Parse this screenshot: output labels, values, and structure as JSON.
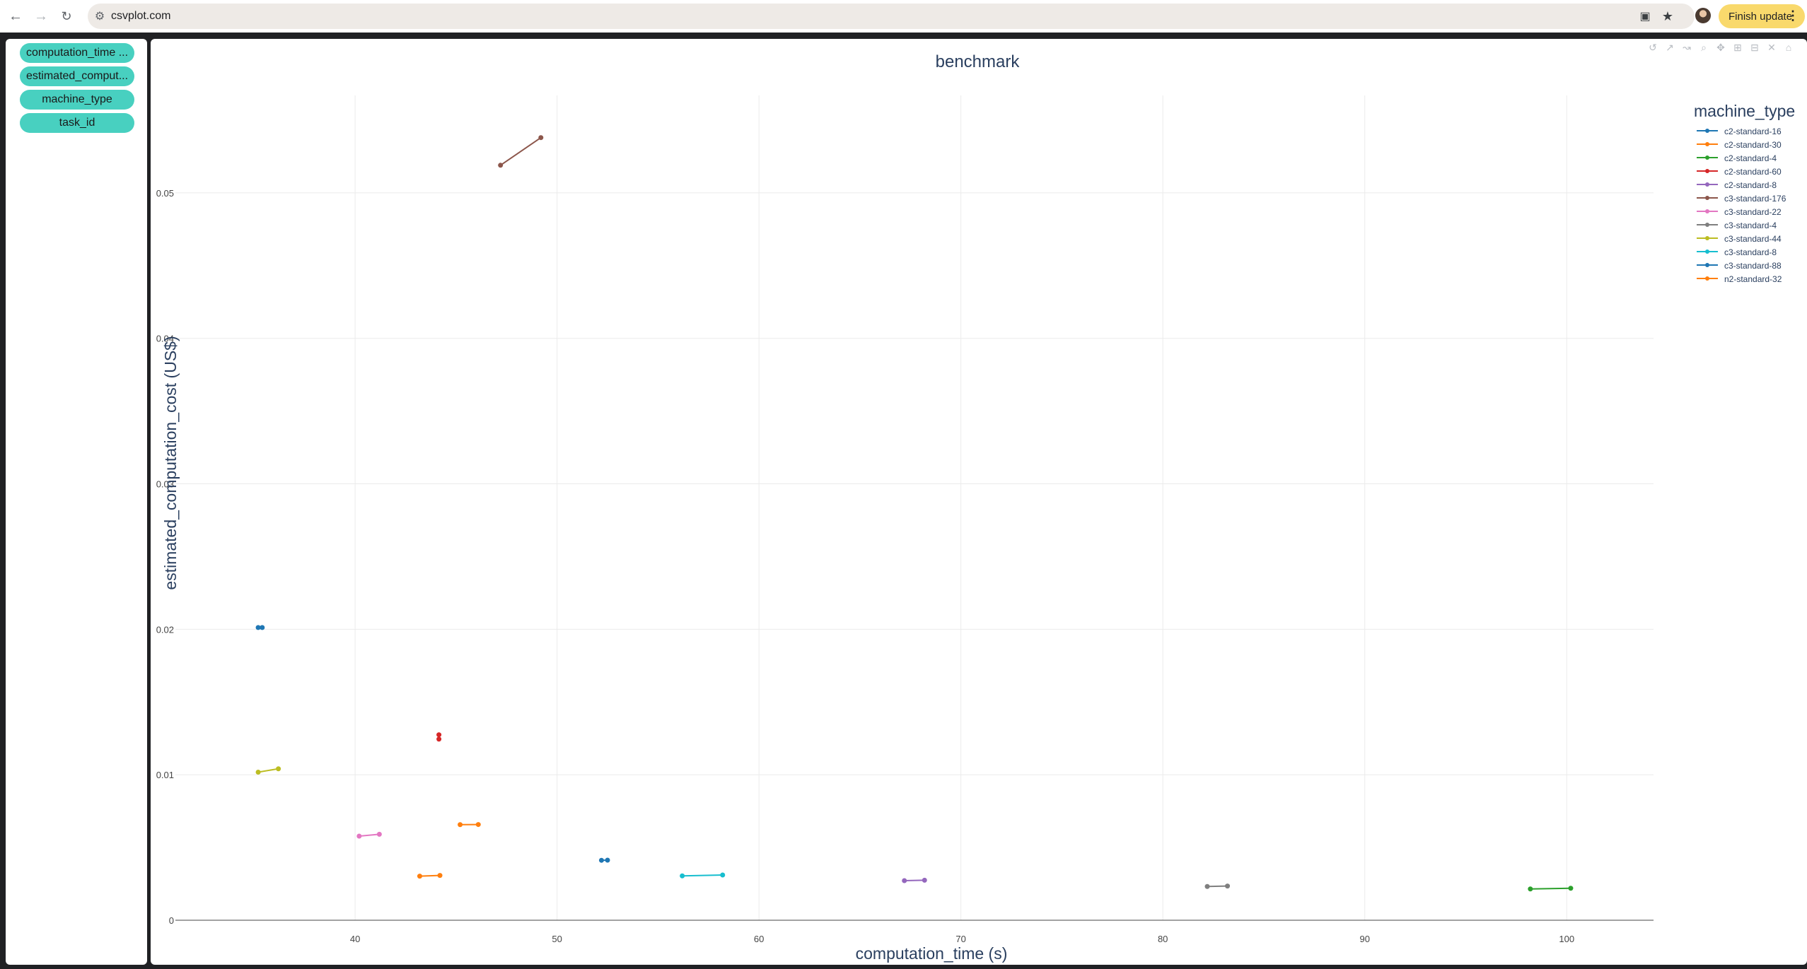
{
  "browser": {
    "url": "csvplot.com",
    "finish_update_label": "Finish update"
  },
  "sidebar": {
    "columns": [
      "computation_time ...",
      "estimated_comput...",
      "machine_type",
      "task_id"
    ]
  },
  "modebar": {
    "icons": [
      "undo-icon",
      "autoscale-icon",
      "line-chart-icon",
      "zoom-icon",
      "pan-icon",
      "zoom-in-icon",
      "zoom-out-icon",
      "reset-axes-icon",
      "home-icon"
    ]
  },
  "chart_data": {
    "type": "line",
    "title": "benchmark",
    "xlabel": "computation_time (s)",
    "ylabel": "estimated_computation_cost (US$)",
    "xlim": [
      31.1,
      104.3
    ],
    "ylim": [
      0,
      0.0567
    ],
    "xticks": [
      40,
      50,
      60,
      70,
      80,
      90,
      100
    ],
    "yticks": [
      0,
      0.01,
      0.02,
      0.03,
      0.04,
      0.05
    ],
    "ytick_labels": [
      "0",
      "0.01",
      "0.02",
      "0.03",
      "0.04",
      "0.05"
    ],
    "grid": true,
    "legend": {
      "title": "machine_type",
      "position": "right"
    },
    "series": [
      {
        "name": "c2-standard-16",
        "color": "#1f77b4",
        "x": [
          52.2,
          52.5
        ],
        "y": [
          0.00412,
          0.00413
        ]
      },
      {
        "name": "c2-standard-30",
        "color": "#ff7f0e",
        "x": [
          45.2,
          46.1
        ],
        "y": [
          0.00657,
          0.00658
        ]
      },
      {
        "name": "c2-standard-4",
        "color": "#2ca02c",
        "x": [
          98.2,
          100.2
        ],
        "y": [
          0.00215,
          0.0022
        ]
      },
      {
        "name": "c2-standard-60",
        "color": "#d62728",
        "x": [
          44.15,
          44.15
        ],
        "y": [
          0.01275,
          0.01245
        ]
      },
      {
        "name": "c2-standard-8",
        "color": "#9467bd",
        "x": [
          67.2,
          68.2
        ],
        "y": [
          0.00272,
          0.00275
        ]
      },
      {
        "name": "c3-standard-176",
        "color": "#8c564b",
        "x": [
          47.2,
          49.2
        ],
        "y": [
          0.0519,
          0.0538
        ]
      },
      {
        "name": "c3-standard-22",
        "color": "#e377c2",
        "x": [
          40.2,
          41.2
        ],
        "y": [
          0.00578,
          0.00591
        ]
      },
      {
        "name": "c3-standard-4",
        "color": "#7f7f7f",
        "x": [
          82.2,
          83.2
        ],
        "y": [
          0.00232,
          0.00235
        ]
      },
      {
        "name": "c3-standard-44",
        "color": "#bcbd22",
        "x": [
          35.2,
          36.2
        ],
        "y": [
          0.01018,
          0.01041
        ]
      },
      {
        "name": "c3-standard-8",
        "color": "#17becf",
        "x": [
          56.2,
          58.2
        ],
        "y": [
          0.00305,
          0.00311
        ]
      },
      {
        "name": "c3-standard-88",
        "color": "#1f77b4",
        "x": [
          35.2,
          35.4
        ],
        "y": [
          0.02012,
          0.02012
        ]
      },
      {
        "name": "n2-standard-32",
        "color": "#ff7f0e",
        "x": [
          43.2,
          44.2
        ],
        "y": [
          0.00303,
          0.00308
        ]
      }
    ]
  }
}
